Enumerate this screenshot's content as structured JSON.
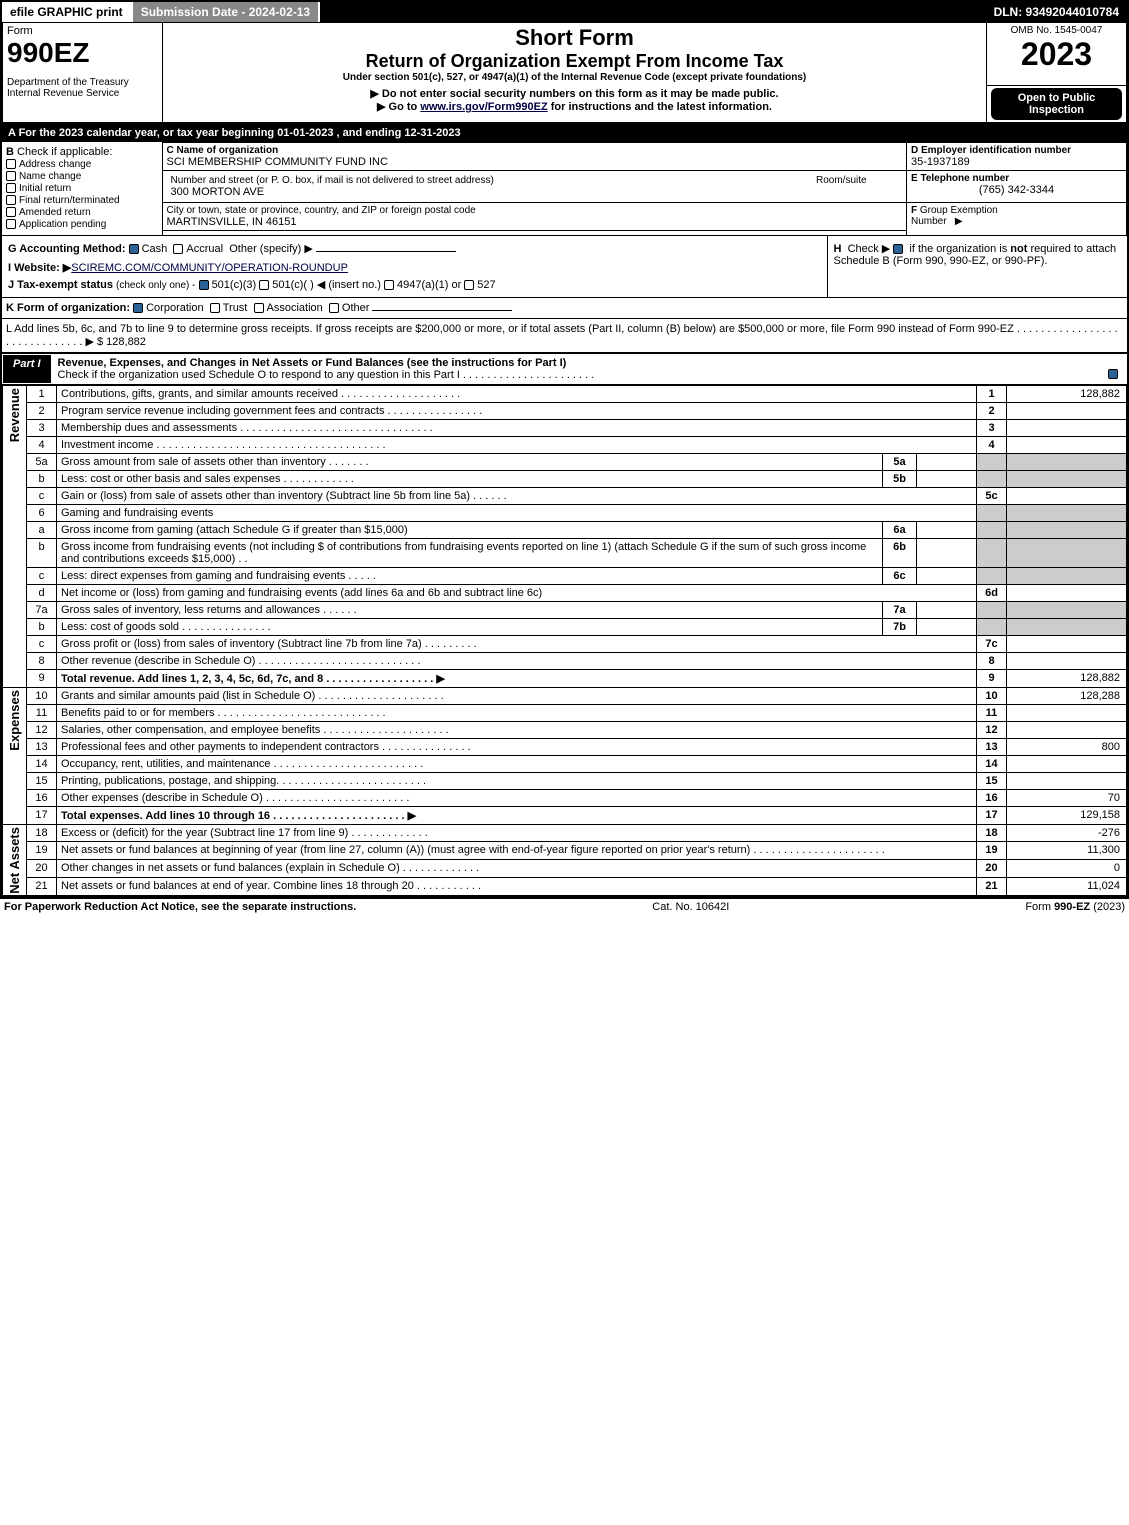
{
  "topbar": {
    "efile": "efile GRAPHIC print",
    "submission": "Submission Date - 2024-02-13",
    "dln": "DLN: 93492044010784"
  },
  "header": {
    "form_label": "Form",
    "form_number": "990EZ",
    "dept": "Department of the Treasury\nInternal Revenue Service",
    "title_short": "Short Form",
    "title_main": "Return of Organization Exempt From Income Tax",
    "subtitle": "Under section 501(c), 527, or 4947(a)(1) of the Internal Revenue Code (except private foundations)",
    "note1": "▶ Do not enter social security numbers on this form as it may be made public.",
    "note2": "▶ Go to www.irs.gov/Form990EZ for instructions and the latest information.",
    "omb": "OMB No. 1545-0047",
    "year": "2023",
    "open": "Open to Public Inspection"
  },
  "sectionA": {
    "text": "A  For the 2023 calendar year, or tax year beginning 01-01-2023 , and ending 12-31-2023"
  },
  "sectionB": {
    "label": "B",
    "check_label": "Check if applicable:",
    "options": [
      {
        "label": "Address change",
        "checked": false
      },
      {
        "label": "Name change",
        "checked": false
      },
      {
        "label": "Initial return",
        "checked": false
      },
      {
        "label": "Final return/terminated",
        "checked": false
      },
      {
        "label": "Amended return",
        "checked": false
      },
      {
        "label": "Application pending",
        "checked": false
      }
    ]
  },
  "sectionC": {
    "name_label": "C Name of organization",
    "name": "SCI MEMBERSHIP COMMUNITY FUND INC",
    "addr_label": "Number and street (or P. O. box, if mail is not delivered to street address)",
    "room_label": "Room/suite",
    "addr": "300 MORTON AVE",
    "city_label": "City or town, state or province, country, and ZIP or foreign postal code",
    "city": "MARTINSVILLE, IN  46151"
  },
  "sectionD": {
    "label": "D Employer identification number",
    "value": "35-1937189"
  },
  "sectionE": {
    "label": "E Telephone number",
    "value": "(765) 342-3344"
  },
  "sectionF": {
    "label": "F Group Exemption Number  ▶",
    "value": ""
  },
  "sectionG": {
    "label": "G Accounting Method:",
    "cash": "Cash",
    "accrual": "Accrual",
    "other": "Other (specify) ▶",
    "cash_checked": true
  },
  "sectionH": {
    "text": "H  Check ▶ ☑ if the organization is not required to attach Schedule B (Form 990, 990-EZ, or 990-PF)."
  },
  "sectionI": {
    "label": "I Website: ▶",
    "value": "SCIREMC.COM/COMMUNITY/OPERATION-ROUNDUP"
  },
  "sectionJ": {
    "label": "J Tax-exempt status",
    "sub": "(check only one) -",
    "opt1": "501(c)(3)",
    "opt2": "501(c)( )",
    "insert": "◀ (insert no.)",
    "opt3": "4947(a)(1) or",
    "opt4": "527",
    "opt1_checked": true
  },
  "sectionK": {
    "label": "K Form of organization:",
    "corp": "Corporation",
    "trust": "Trust",
    "assoc": "Association",
    "other": "Other",
    "corp_checked": true
  },
  "sectionL": {
    "text": "L Add lines 5b, 6c, and 7b to line 9 to determine gross receipts. If gross receipts are $200,000 or more, or if total assets (Part II, column (B) below) are $500,000 or more, file Form 990 instead of Form 990-EZ . . . . . . . . . . . . . . . . . . . . . . . . . . . . . . ▶ $",
    "value": "128,882"
  },
  "part1": {
    "label": "Part I",
    "title": "Revenue, Expenses, and Changes in Net Assets or Fund Balances (see the instructions for Part I)",
    "check_note": "Check if the organization used Schedule O to respond to any question in this Part I . . . . . . . . . . . . . . . . . . . . . .",
    "checked": true
  },
  "sections": {
    "revenue": "Revenue",
    "expenses": "Expenses",
    "netassets": "Net Assets"
  },
  "lines": [
    {
      "n": "1",
      "label": "Contributions, gifts, grants, and similar amounts received . . . . . . . . . . . . . . . . . . . .",
      "box": "1",
      "val": "128,882"
    },
    {
      "n": "2",
      "label": "Program service revenue including government fees and contracts . . . . . . . . . . . . . . . .",
      "box": "2",
      "val": ""
    },
    {
      "n": "3",
      "label": "Membership dues and assessments . . . . . . . . . . . . . . . . . . . . . . . . . . . . . . . .",
      "box": "3",
      "val": ""
    },
    {
      "n": "4",
      "label": "Investment income . . . . . . . . . . . . . . . . . . . . . . . . . . . . . . . . . . . . . .",
      "box": "4",
      "val": ""
    },
    {
      "n": "5a",
      "label": "Gross amount from sale of assets other than inventory . . . . . . .",
      "sub": "5a",
      "subval": "",
      "grey": true
    },
    {
      "n": "b",
      "label": "Less: cost or other basis and sales expenses . . . . . . . . . . . .",
      "sub": "5b",
      "subval": "",
      "grey": true
    },
    {
      "n": "c",
      "label": "Gain or (loss) from sale of assets other than inventory (Subtract line 5b from line 5a) . . . . . .",
      "box": "5c",
      "val": ""
    },
    {
      "n": "6",
      "label": "Gaming and fundraising events",
      "noval": true
    },
    {
      "n": "a",
      "label": "Gross income from gaming (attach Schedule G if greater than $15,000)",
      "sub": "6a",
      "subval": "",
      "grey": true
    },
    {
      "n": "b",
      "label": "Gross income from fundraising events (not including $                    of contributions from fundraising events reported on line 1) (attach Schedule G if the sum of such gross income and contributions exceeds $15,000)  . .",
      "sub": "6b",
      "subval": "",
      "grey": true
    },
    {
      "n": "c",
      "label": "Less: direct expenses from gaming and fundraising events  . . . . .",
      "sub": "6c",
      "subval": "",
      "grey": true
    },
    {
      "n": "d",
      "label": "Net income or (loss) from gaming and fundraising events (add lines 6a and 6b and subtract line 6c)",
      "box": "6d",
      "val": ""
    },
    {
      "n": "7a",
      "label": "Gross sales of inventory, less returns and allowances . . . . . .",
      "sub": "7a",
      "subval": "",
      "grey": true
    },
    {
      "n": "b",
      "label": "Less: cost of goods sold          . . . . . . . . . . . . . . .",
      "sub": "7b",
      "subval": "",
      "grey": true
    },
    {
      "n": "c",
      "label": "Gross profit or (loss) from sales of inventory (Subtract line 7b from line 7a) . . . . . . . . .",
      "box": "7c",
      "val": ""
    },
    {
      "n": "8",
      "label": "Other revenue (describe in Schedule O) . . . . . . . . . . . . . . . . . . . . . . . . . . .",
      "box": "8",
      "val": ""
    },
    {
      "n": "9",
      "label": "Total revenue. Add lines 1, 2, 3, 4, 5c, 6d, 7c, and 8  . . . . . . . . . . . . . . . . . . ▶",
      "box": "9",
      "val": "128,882",
      "bold": true
    }
  ],
  "exp_lines": [
    {
      "n": "10",
      "label": "Grants and similar amounts paid (list in Schedule O) . . . . . . . . . . . . . . . . . . . . .",
      "box": "10",
      "val": "128,288"
    },
    {
      "n": "11",
      "label": "Benefits paid to or for members     . . . . . . . . . . . . . . . . . . . . . . . . . . . .",
      "box": "11",
      "val": ""
    },
    {
      "n": "12",
      "label": "Salaries, other compensation, and employee benefits . . . . . . . . . . . . . . . . . . . . .",
      "box": "12",
      "val": ""
    },
    {
      "n": "13",
      "label": "Professional fees and other payments to independent contractors . . . . . . . . . . . . . . .",
      "box": "13",
      "val": "800"
    },
    {
      "n": "14",
      "label": "Occupancy, rent, utilities, and maintenance . . . . . . . . . . . . . . . . . . . . . . . . .",
      "box": "14",
      "val": ""
    },
    {
      "n": "15",
      "label": "Printing, publications, postage, and shipping. . . . . . . . . . . . . . . . . . . . . . . . .",
      "box": "15",
      "val": ""
    },
    {
      "n": "16",
      "label": "Other expenses (describe in Schedule O)     . . . . . . . . . . . . . . . . . . . . . . . .",
      "box": "16",
      "val": "70"
    },
    {
      "n": "17",
      "label": "Total expenses. Add lines 10 through 16     . . . . . . . . . . . . . . . . . . . . . . ▶",
      "box": "17",
      "val": "129,158",
      "bold": true
    }
  ],
  "na_lines": [
    {
      "n": "18",
      "label": "Excess or (deficit) for the year (Subtract line 17 from line 9)        . . . . . . . . . . . . .",
      "box": "18",
      "val": "-276"
    },
    {
      "n": "19",
      "label": "Net assets or fund balances at beginning of year (from line 27, column (A)) (must agree with end-of-year figure reported on prior year's return) . . . . . . . . . . . . . . . . . . . . . .",
      "box": "19",
      "val": "11,300"
    },
    {
      "n": "20",
      "label": "Other changes in net assets or fund balances (explain in Schedule O) . . . . . . . . . . . . .",
      "box": "20",
      "val": "0"
    },
    {
      "n": "21",
      "label": "Net assets or fund balances at end of year. Combine lines 18 through 20 . . . . . . . . . . .",
      "box": "21",
      "val": "11,024"
    }
  ],
  "footer": {
    "left": "For Paperwork Reduction Act Notice, see the separate instructions.",
    "mid": "Cat. No. 10642I",
    "right": "Form 990-EZ (2023)"
  },
  "colors": {
    "bg": "#ffffff",
    "border": "#000000",
    "grey": "#cccccc",
    "darkgrey": "#888888",
    "check": "#2a6496"
  }
}
